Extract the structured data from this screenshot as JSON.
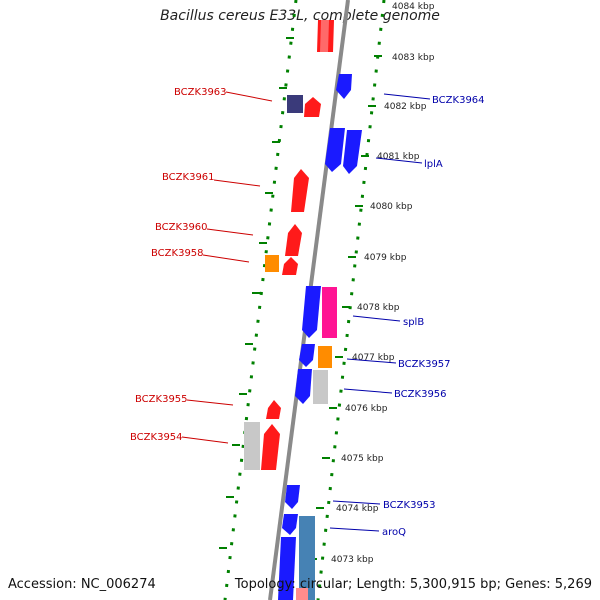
{
  "title": "Bacillus cereus E33L, complete genome",
  "footer": {
    "accession": "Accession: NC_006274",
    "topology": "Topology: circular; Length: 5,300,915 bp; Genes: 5,269"
  },
  "kbp_labels": [
    "4084 kbp",
    "4083 kbp",
    "4082 kbp",
    "4081 kbp",
    "4080 kbp",
    "4079 kbp",
    "4078 kbp",
    "4077 kbp",
    "4076 kbp",
    "4075 kbp",
    "4074 kbp",
    "4073 kbp"
  ],
  "left_gene_labels": [
    "BCZK3963",
    "BCZK3961",
    "BCZK3960",
    "BCZK3958",
    "BCZK3955",
    "BCZK3954"
  ],
  "right_gene_labels": [
    "BCZK3964",
    "lplA",
    "splB",
    "BCZK3957",
    "BCZK3956",
    "BCZK3953",
    "aroQ"
  ],
  "colors": {
    "left_label": "#cc0000",
    "right_label": "#0000aa",
    "gene_red": "#ff1a1a",
    "gene_blue": "#1a1aff",
    "gene_orange": "#ff8c00",
    "gene_magenta": "#ff1493",
    "gene_grey": "#c8c8c8",
    "gene_navy": "#3a3a7a",
    "gene_steel": "#4682b4",
    "axis_grey": "#808080",
    "ruler_green": "#008000"
  }
}
